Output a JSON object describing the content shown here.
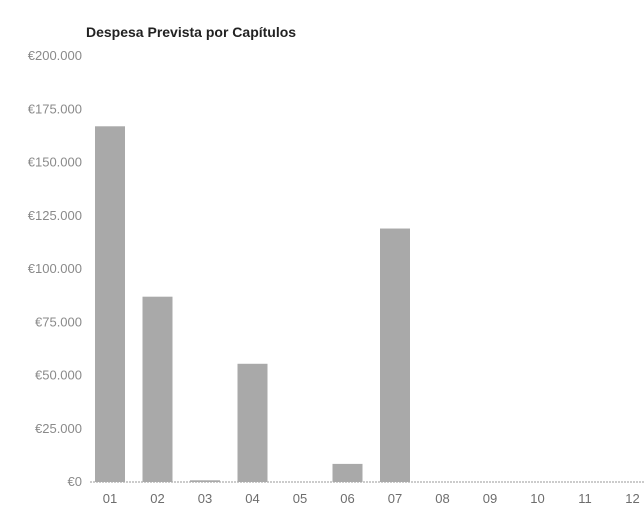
{
  "chart_data": {
    "type": "bar",
    "title": "Despesa Prevista por Capítulos",
    "xlabel": "",
    "ylabel": "",
    "categories": [
      "01",
      "02",
      "03",
      "04",
      "05",
      "06",
      "07",
      "08",
      "09",
      "10",
      "11",
      "12"
    ],
    "values": [
      167000,
      87000,
      800,
      55500,
      0,
      8500,
      119000,
      0,
      0,
      0,
      0,
      0
    ],
    "ylim": [
      0,
      200000
    ],
    "yticks": [
      0,
      25000,
      50000,
      75000,
      100000,
      125000,
      150000,
      175000,
      200000
    ],
    "ytick_labels": [
      "€0",
      "€25.000",
      "€50.000",
      "€75.000",
      "€100.000",
      "€125.000",
      "€150.000",
      "€175.000",
      "€200.000"
    ],
    "grid": false,
    "legend": "none",
    "colors": {
      "bar": "#a9a9a9",
      "axis": "#9a9a9a",
      "tick_text": "#8a8a8a",
      "title": "#222222"
    }
  }
}
